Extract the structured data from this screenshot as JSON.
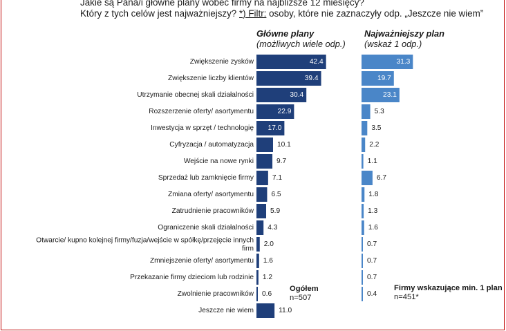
{
  "question": {
    "line1": "Jakie są Pana/i główne plany wobec firmy na najbliższe 12 miesięcy?",
    "line2_prefix": "Który z tych celów jest najważniejszy? ",
    "filter_label": "*) Filtr:",
    "line2_suffix": " osoby, które nie zaznaczyły odp. „Jeszcze nie wiem”"
  },
  "columns": {
    "main": {
      "title": "Główne plany",
      "subtitle": "(możliwych wiele odp.)"
    },
    "top": {
      "title": "Najważniejszy plan",
      "subtitle": "(wskaż 1 odp.)"
    }
  },
  "notes": {
    "main": {
      "label": "Ogółem",
      "n": "n=507"
    },
    "top": {
      "label": "Firmy wskazujące min. 1 plan",
      "n": "n=451*"
    }
  },
  "colors": {
    "main_bar": "#1f3f7a",
    "top_bar": "#4a86c8",
    "value_in": "#ffffff",
    "value_out": "#1a1a1a"
  },
  "chart_data": {
    "type": "bar",
    "orientation": "horizontal",
    "categories": [
      "Zwiększenie zysków",
      "Zwiększenie liczby klientów",
      "Utrzymanie obecnej skali działalności",
      "Rozszerzenie oferty/ asortymentu",
      "Inwestycja w sprzęt / technologię",
      "Cyfryzacja / automatyzacja",
      "Wejście na nowe rynki",
      "Sprzedaż lub zamknięcie firmy",
      "Zmiana oferty/ asortymentu",
      "Zatrudnienie pracowników",
      "Ograniczenie skali działalności",
      "Otwarcie/ kupno kolejnej firmy/fuzja/wejście w spółkę/przejęcie innych firm",
      "Zmniejszenie oferty/ asortymentu",
      "Przekazanie firmy dzieciom lub rodzinie",
      "Zwolnienie pracowników",
      "Jeszcze nie wiem"
    ],
    "series": [
      {
        "name": "Główne plany",
        "values": [
          42.4,
          39.4,
          30.4,
          22.9,
          17.0,
          10.1,
          9.7,
          7.1,
          6.5,
          5.9,
          4.3,
          2.0,
          1.6,
          1.2,
          0.6,
          11.0
        ]
      },
      {
        "name": "Najważniejszy plan",
        "values": [
          31.3,
          19.7,
          23.1,
          5.3,
          3.5,
          2.2,
          1.1,
          6.7,
          1.8,
          1.3,
          1.6,
          0.7,
          0.7,
          0.7,
          0.4,
          null
        ]
      }
    ],
    "value_labels": {
      "main": [
        "42.4",
        "39.4",
        "30.4",
        "22.9",
        "17.0",
        "10.1",
        "9.7",
        "7.1",
        "6.5",
        "5.9",
        "4.3",
        "2.0",
        "1.6",
        "1.2",
        "0.6",
        "11.0"
      ],
      "top": [
        "31.3",
        "19.7",
        "23.1",
        "5.3",
        "3.5",
        "2.2",
        "1.1",
        "6.7",
        "1.8",
        "1.3",
        "1.6",
        "0.7",
        "0.7",
        "0.7",
        "0.4",
        null
      ]
    },
    "grid": false,
    "legend": "none"
  }
}
